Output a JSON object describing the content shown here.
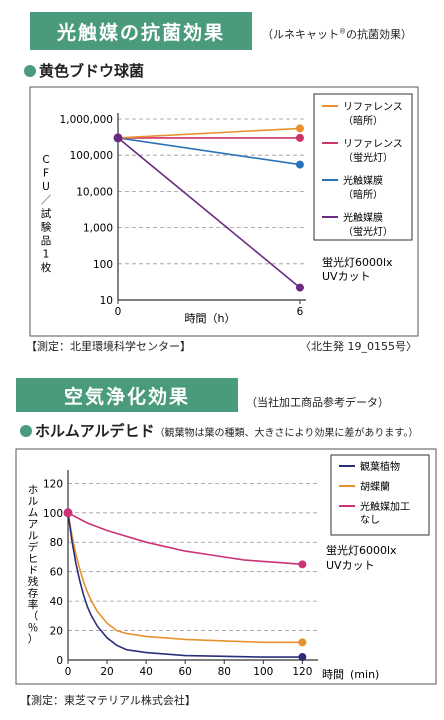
{
  "section1": {
    "banner": "光触媒の抗菌効果",
    "banner_note": "（ルネキャット",
    "banner_note_sup": "®",
    "banner_note_tail": "の抗菌効果）",
    "heading": "黄色ブドウ球菌",
    "source_left": "【測定：北里環境科学センター】",
    "source_right": "〈北生発 19_0155号〉"
  },
  "section2": {
    "banner": "空気浄化効果",
    "banner_note": "（当社加工商品参考データ）",
    "heading": "ホルムアルデヒド",
    "heading_note": "（観葉物は葉の種類、大きさにより効果に差があります。）",
    "source": "【測定：東芝マテリアル株式会社】"
  },
  "chart_data": [
    {
      "type": "line",
      "ylabel": "CFU／試験品1枚",
      "xlabel": "時間（h）",
      "y_scale": "log",
      "ylim": [
        10,
        1000000
      ],
      "yticks": [
        10,
        100,
        1000,
        10000,
        100000,
        1000000
      ],
      "ytick_labels": [
        "10",
        "100",
        "1,000",
        "10,000",
        "100,000",
        "1,000,000"
      ],
      "xticks": [
        0,
        6
      ],
      "xtick_labels": [
        "0",
        "6"
      ],
      "xlim": [
        0,
        6.2
      ],
      "grid": "horizontal-dashed",
      "legend_position": "right",
      "annotation_lines": [
        "蛍光灯6000lx",
        "UVカット"
      ],
      "series": [
        {
          "name_lines": [
            "リファレンス",
            "（暗所）"
          ],
          "color": "#e8912e",
          "x": [
            0,
            6
          ],
          "y": [
            300000,
            550000
          ]
        },
        {
          "name_lines": [
            "リファレンス",
            "（蛍光灯）"
          ],
          "color": "#cc3366",
          "x": [
            0,
            6
          ],
          "y": [
            300000,
            300000
          ]
        },
        {
          "name_lines": [
            "光触媒膜",
            "（暗所）"
          ],
          "color": "#2b73b8",
          "x": [
            0,
            6
          ],
          "y": [
            300000,
            55000
          ]
        },
        {
          "name_lines": [
            "光触媒膜",
            "（蛍光灯）"
          ],
          "color": "#6a2a82",
          "x": [
            0,
            6
          ],
          "y": [
            300000,
            22
          ]
        }
      ]
    },
    {
      "type": "line",
      "ylabel": "ホルムアルデヒド残存率（％）",
      "xlabel": "時間",
      "xlabel_unit": "(min)",
      "ylim": [
        0,
        125
      ],
      "yticks": [
        0,
        20,
        40,
        60,
        80,
        100,
        120
      ],
      "ytick_labels": [
        "0",
        "20",
        "40",
        "60",
        "80",
        "100",
        "120"
      ],
      "xticks": [
        0,
        20,
        40,
        60,
        80,
        100,
        120
      ],
      "xtick_labels": [
        "0",
        "20",
        "40",
        "60",
        "80",
        "100",
        "120"
      ],
      "xlim": [
        0,
        128
      ],
      "grid": "horizontal-dashed",
      "legend_position": "right",
      "annotation_lines": [
        "蛍光灯6000lx",
        "UVカット"
      ],
      "series": [
        {
          "name_lines": [
            "観葉植物"
          ],
          "color": "#2a2f7a",
          "x": [
            0,
            2,
            4,
            6,
            8,
            10,
            12,
            15,
            20,
            25,
            30,
            40,
            50,
            60,
            80,
            100,
            120
          ],
          "y": [
            100,
            81,
            66,
            54,
            44,
            36,
            30,
            23,
            15,
            10,
            7,
            5,
            4,
            3,
            2.5,
            2,
            2
          ]
        },
        {
          "name_lines": [
            "胡蝶蘭"
          ],
          "color": "#e8912e",
          "x": [
            0,
            2,
            4,
            6,
            8,
            10,
            12,
            15,
            20,
            25,
            30,
            40,
            50,
            60,
            80,
            100,
            120
          ],
          "y": [
            100,
            85,
            72,
            62,
            53,
            46,
            40,
            33,
            25,
            20,
            18,
            16,
            15,
            14,
            13,
            12,
            12
          ]
        },
        {
          "name_lines": [
            "光触媒加工",
            "なし"
          ],
          "color": "#cc3377",
          "x": [
            0,
            10,
            20,
            30,
            40,
            50,
            60,
            70,
            80,
            90,
            100,
            110,
            120
          ],
          "y": [
            100,
            93,
            88,
            84,
            80,
            77,
            74,
            72,
            70,
            68,
            67,
            66,
            65
          ]
        }
      ]
    }
  ]
}
